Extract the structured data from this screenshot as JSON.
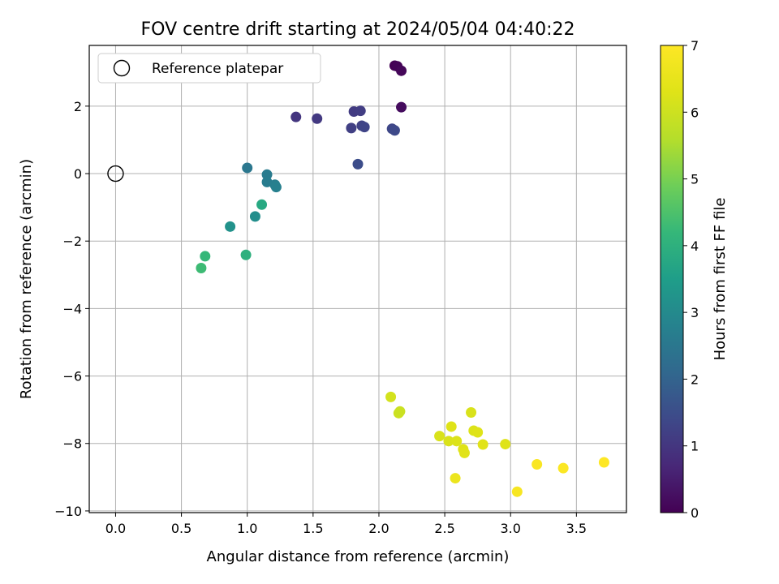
{
  "chart_data": {
    "type": "scatter",
    "title": "FOV centre drift starting at 2024/05/04 04:40:22",
    "xlabel": "Angular distance from reference (arcmin)",
    "ylabel": "Rotation from reference (arcmin)",
    "colorbar_label": "Hours from first FF file",
    "xlim": [
      -0.2,
      3.88
    ],
    "ylim": [
      -10.05,
      3.8
    ],
    "clim": [
      0,
      7
    ],
    "xticks": [
      "0.0",
      "0.5",
      "1.0",
      "1.5",
      "2.0",
      "2.5",
      "3.0",
      "3.5"
    ],
    "yticks": [
      "−10",
      "−8",
      "−6",
      "−4",
      "−2",
      "0",
      "2"
    ],
    "colorbar_ticks": [
      "0",
      "1",
      "2",
      "3",
      "4",
      "5",
      "6",
      "7"
    ],
    "colormap": "viridis",
    "grid": true,
    "legend": {
      "position": "upper-left",
      "entries": [
        "Reference platepar"
      ]
    },
    "reference_point": {
      "x": 0.0,
      "y": 0.0
    },
    "points": [
      {
        "x": 2.12,
        "y": 3.2,
        "t": 0.0
      },
      {
        "x": 2.14,
        "y": 3.18,
        "t": 0.05
      },
      {
        "x": 2.17,
        "y": 3.05,
        "t": 0.1
      },
      {
        "x": 2.17,
        "y": 1.97,
        "t": 0.2
      },
      {
        "x": 1.37,
        "y": 1.68,
        "t": 1.0
      },
      {
        "x": 1.53,
        "y": 1.63,
        "t": 1.05
      },
      {
        "x": 1.81,
        "y": 1.84,
        "t": 1.1
      },
      {
        "x": 1.86,
        "y": 1.86,
        "t": 1.15
      },
      {
        "x": 1.79,
        "y": 1.35,
        "t": 1.2
      },
      {
        "x": 1.87,
        "y": 1.42,
        "t": 1.25
      },
      {
        "x": 1.89,
        "y": 1.38,
        "t": 1.3
      },
      {
        "x": 2.1,
        "y": 1.33,
        "t": 1.35
      },
      {
        "x": 2.12,
        "y": 1.28,
        "t": 1.4
      },
      {
        "x": 1.84,
        "y": 0.28,
        "t": 1.5
      },
      {
        "x": 1.0,
        "y": 0.17,
        "t": 2.5
      },
      {
        "x": 1.15,
        "y": -0.03,
        "t": 2.6
      },
      {
        "x": 1.15,
        "y": -0.25,
        "t": 2.65
      },
      {
        "x": 1.21,
        "y": -0.33,
        "t": 2.7
      },
      {
        "x": 1.22,
        "y": -0.4,
        "t": 2.75
      },
      {
        "x": 1.11,
        "y": -0.92,
        "t": 3.8
      },
      {
        "x": 1.06,
        "y": -1.27,
        "t": 3.1
      },
      {
        "x": 0.87,
        "y": -1.57,
        "t": 3.2
      },
      {
        "x": 0.99,
        "y": -2.41,
        "t": 4.0
      },
      {
        "x": 0.68,
        "y": -2.45,
        "t": 4.2
      },
      {
        "x": 0.65,
        "y": -2.8,
        "t": 4.3
      },
      {
        "x": 2.09,
        "y": -6.62,
        "t": 6.1
      },
      {
        "x": 2.15,
        "y": -7.1,
        "t": 6.0
      },
      {
        "x": 2.16,
        "y": -7.05,
        "t": 5.95
      },
      {
        "x": 2.46,
        "y": -7.78,
        "t": 6.2
      },
      {
        "x": 2.53,
        "y": -7.93,
        "t": 6.2
      },
      {
        "x": 2.55,
        "y": -7.5,
        "t": 6.3
      },
      {
        "x": 2.59,
        "y": -7.93,
        "t": 6.25
      },
      {
        "x": 2.64,
        "y": -8.17,
        "t": 6.3
      },
      {
        "x": 2.65,
        "y": -8.28,
        "t": 6.35
      },
      {
        "x": 2.7,
        "y": -7.08,
        "t": 6.2
      },
      {
        "x": 2.72,
        "y": -7.62,
        "t": 6.25
      },
      {
        "x": 2.75,
        "y": -7.67,
        "t": 6.3
      },
      {
        "x": 2.79,
        "y": -8.03,
        "t": 6.35
      },
      {
        "x": 2.96,
        "y": -8.02,
        "t": 6.3
      },
      {
        "x": 2.58,
        "y": -9.03,
        "t": 6.6
      },
      {
        "x": 3.05,
        "y": -9.43,
        "t": 6.85
      },
      {
        "x": 3.2,
        "y": -8.62,
        "t": 6.9
      },
      {
        "x": 3.4,
        "y": -8.73,
        "t": 6.95
      },
      {
        "x": 3.71,
        "y": -8.56,
        "t": 7.0
      }
    ]
  }
}
